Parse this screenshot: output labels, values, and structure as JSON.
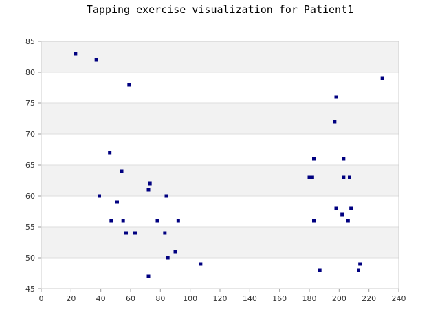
{
  "chart_data": {
    "type": "scatter",
    "title": "Tapping exercise visualization for Patient1",
    "xlabel": "",
    "ylabel": "",
    "xlim": [
      0,
      240
    ],
    "ylim": [
      45,
      85
    ],
    "x_ticks": [
      "0",
      "20",
      "40",
      "60",
      "80",
      "100",
      "120",
      "140",
      "160",
      "180",
      "200",
      "220",
      "240"
    ],
    "y_ticks": [
      "45",
      "50",
      "55",
      "60",
      "65",
      "70",
      "75",
      "80",
      "85"
    ],
    "grid": "horizontal bands",
    "legend": "none",
    "colors": {
      "marker": "#000080",
      "band": "#f2f2f2",
      "gridline": "#dddddd"
    },
    "series": [
      {
        "points": [
          [
            23,
            83
          ],
          [
            37,
            82
          ],
          [
            59,
            78
          ],
          [
            46,
            67
          ],
          [
            54,
            64
          ],
          [
            73,
            62
          ],
          [
            72,
            61
          ],
          [
            39,
            60
          ],
          [
            84,
            60
          ],
          [
            51,
            59
          ],
          [
            47,
            56
          ],
          [
            55,
            56
          ],
          [
            78,
            56
          ],
          [
            92,
            56
          ],
          [
            57,
            54
          ],
          [
            63,
            54
          ],
          [
            83,
            54
          ],
          [
            90,
            51
          ],
          [
            85,
            50
          ],
          [
            107,
            49
          ],
          [
            72,
            47
          ],
          [
            229,
            79
          ],
          [
            198,
            76
          ],
          [
            197,
            72
          ],
          [
            183,
            66
          ],
          [
            203,
            66
          ],
          [
            180,
            63
          ],
          [
            182,
            63
          ],
          [
            203,
            63
          ],
          [
            207,
            63
          ],
          [
            198,
            58
          ],
          [
            208,
            58
          ],
          [
            202,
            57
          ],
          [
            183,
            56
          ],
          [
            206,
            56
          ],
          [
            214,
            49
          ],
          [
            187,
            48
          ],
          [
            213,
            48
          ]
        ]
      }
    ]
  }
}
